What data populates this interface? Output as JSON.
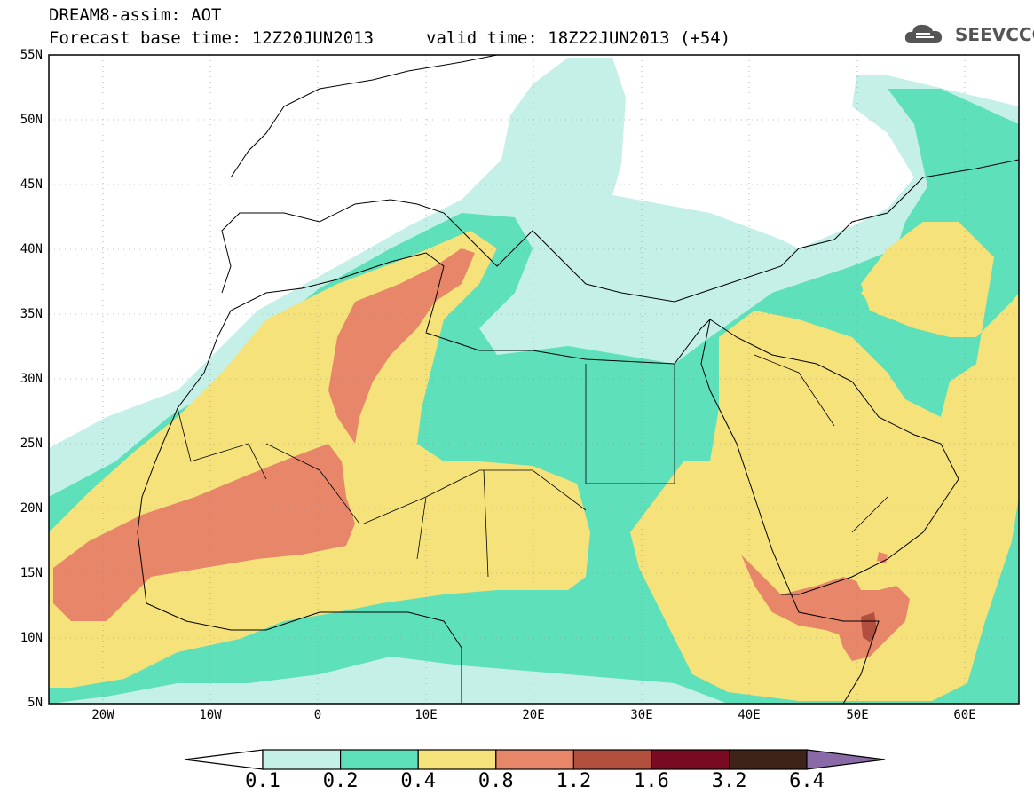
{
  "header": {
    "title_line1": "DREAM8-assim: AOT",
    "title_line2": "Forecast base time: 12Z20JUN2013",
    "valid_time": "valid time: 18Z22JUN2013 (+54)",
    "logo_text": "SEEVCCC",
    "logo_icon": "cloud-icon"
  },
  "map": {
    "variable": "AOT",
    "lat_range": [
      5,
      55
    ],
    "lon_range": [
      -25,
      65
    ],
    "grid": "dotted",
    "lat_labels": [
      "55N",
      "50N",
      "45N",
      "40N",
      "35N",
      "30N",
      "25N",
      "20N",
      "15N",
      "10N",
      "5N"
    ],
    "lon_labels": [
      "20W",
      "10W",
      "0",
      "10E",
      "20E",
      "30E",
      "40E",
      "50E",
      "60E"
    ]
  },
  "legend": {
    "levels": [
      "0.1",
      "0.2",
      "0.4",
      "0.8",
      "1.2",
      "1.6",
      "3.2",
      "6.4"
    ],
    "colors": [
      "#ffffff",
      "#c4f0e8",
      "#5ee0bb",
      "#f5e27a",
      "#e8866a",
      "#b24f3f",
      "#7a0a22",
      "#3e2418",
      "#8a6aa6"
    ]
  }
}
